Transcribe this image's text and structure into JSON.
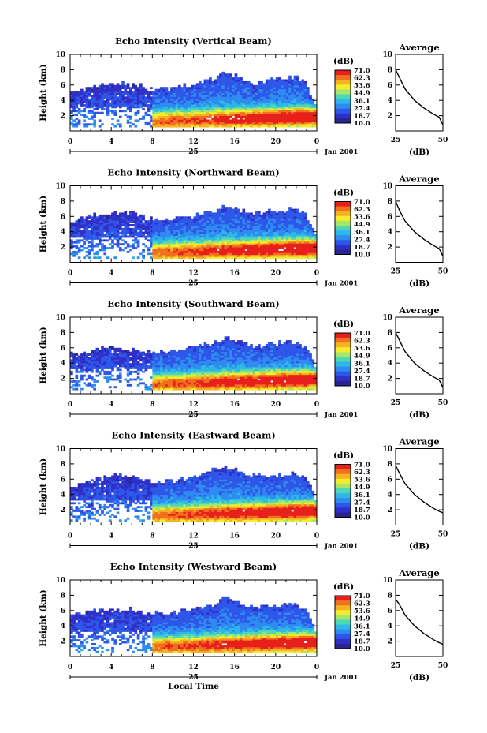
{
  "figure": {
    "x_axis_label": "Local Time",
    "y_axis_label": "Height (km)",
    "day_label": "25",
    "month_label": "Jan 2001",
    "colorbar_unit": "(dB)",
    "colorbar_ticks": [
      "71.0",
      "62.3",
      "53.6",
      "44.9",
      "36.1",
      "27.4",
      "18.7",
      "10.0"
    ],
    "colorbar_colors": [
      "#e8201c",
      "#f0701e",
      "#f5b324",
      "#f2ee2e",
      "#a8e66a",
      "#4fd7b4",
      "#2eb8e8",
      "#2e8cf0",
      "#2e56e8",
      "#3030c8",
      "#26268e"
    ],
    "avg_title": "Average",
    "avg_xlabel": "(dB)",
    "avg_xticks": [
      "25",
      "50"
    ],
    "height_ticks": [
      "2",
      "4",
      "6",
      "8",
      "10"
    ],
    "time_ticks": [
      "0",
      "4",
      "8",
      "12",
      "16",
      "20",
      "0"
    ]
  },
  "chart_data": [
    {
      "type": "heatmap",
      "title": "Echo Intensity (Vertical Beam)",
      "xlabel": "",
      "ylabel": "Height (km)",
      "xlim": [
        0,
        24
      ],
      "ylim": [
        0,
        10
      ],
      "clim": [
        10.0,
        71.0
      ],
      "top_height_by_hour": [
        [
          0,
          5.0
        ],
        [
          2,
          5.5
        ],
        [
          4,
          6.1
        ],
        [
          6,
          6.0
        ],
        [
          8,
          5.4
        ],
        [
          10,
          5.5
        ],
        [
          12,
          6.0
        ],
        [
          14,
          6.7
        ],
        [
          15,
          7.6
        ],
        [
          16,
          7.1
        ],
        [
          18,
          6.0
        ],
        [
          20,
          6.7
        ],
        [
          22,
          7.0
        ],
        [
          23,
          6.2
        ],
        [
          24,
          3.0
        ]
      ],
      "average_profile": {
        "title": "Average",
        "xlabel": "(dB)",
        "ylabel": "",
        "xlim": [
          25,
          50
        ],
        "ylim": [
          0,
          10
        ],
        "x": [
          25,
          27,
          30,
          35,
          40,
          45,
          48,
          50
        ],
        "y": [
          8.0,
          7.0,
          5.5,
          4.0,
          3.0,
          2.2,
          1.8,
          0.8
        ]
      }
    },
    {
      "type": "heatmap",
      "title": "Echo Intensity (Northward Beam)",
      "xlabel": "",
      "ylabel": "Height (km)",
      "xlim": [
        0,
        24
      ],
      "ylim": [
        0,
        10
      ],
      "clim": [
        10.0,
        71.0
      ],
      "top_height_by_hour": [
        [
          0,
          5.0
        ],
        [
          2,
          6.0
        ],
        [
          4,
          6.4
        ],
        [
          6,
          6.3
        ],
        [
          8,
          5.5
        ],
        [
          10,
          5.5
        ],
        [
          12,
          6.0
        ],
        [
          14,
          6.6
        ],
        [
          15,
          7.3
        ],
        [
          16,
          7.0
        ],
        [
          18,
          6.3
        ],
        [
          20,
          6.7
        ],
        [
          22,
          6.8
        ],
        [
          23,
          6.0
        ],
        [
          24,
          3.0
        ]
      ],
      "average_profile": {
        "title": "Average",
        "xlabel": "(dB)",
        "ylabel": "",
        "xlim": [
          25,
          50
        ],
        "ylim": [
          0,
          10
        ],
        "x": [
          25,
          27,
          30,
          35,
          40,
          45,
          48,
          50
        ],
        "y": [
          8.0,
          6.8,
          5.4,
          4.0,
          3.0,
          2.2,
          1.8,
          0.8
        ]
      }
    },
    {
      "type": "heatmap",
      "title": "Echo Intensity (Southward Beam)",
      "xlabel": "",
      "ylabel": "Height (km)",
      "xlim": [
        0,
        24
      ],
      "ylim": [
        0,
        10
      ],
      "clim": [
        10.0,
        71.0
      ],
      "top_height_by_hour": [
        [
          0,
          5.0
        ],
        [
          2,
          5.5
        ],
        [
          4,
          6.0
        ],
        [
          6,
          5.8
        ],
        [
          8,
          5.3
        ],
        [
          10,
          5.5
        ],
        [
          12,
          6.0
        ],
        [
          14,
          6.6
        ],
        [
          15,
          7.2
        ],
        [
          16,
          6.8
        ],
        [
          18,
          6.0
        ],
        [
          20,
          6.5
        ],
        [
          22,
          6.6
        ],
        [
          23,
          6.0
        ],
        [
          24,
          3.0
        ]
      ],
      "average_profile": {
        "title": "Average",
        "xlabel": "(dB)",
        "ylabel": "",
        "xlim": [
          25,
          50
        ],
        "ylim": [
          0,
          10
        ],
        "x": [
          25,
          27,
          30,
          35,
          40,
          45,
          48,
          50
        ],
        "y": [
          8.0,
          7.0,
          5.5,
          4.0,
          3.0,
          2.2,
          1.8,
          0.8
        ]
      }
    },
    {
      "type": "heatmap",
      "title": "Echo Intensity (Eastward Beam)",
      "xlabel": "",
      "ylabel": "Height (km)",
      "xlim": [
        0,
        24
      ],
      "ylim": [
        0,
        10
      ],
      "clim": [
        10.0,
        71.0
      ],
      "top_height_by_hour": [
        [
          0,
          5.0
        ],
        [
          2,
          5.8
        ],
        [
          4,
          6.4
        ],
        [
          6,
          6.2
        ],
        [
          8,
          5.5
        ],
        [
          10,
          5.6
        ],
        [
          12,
          6.0
        ],
        [
          14,
          7.2
        ],
        [
          15,
          7.5
        ],
        [
          16,
          7.2
        ],
        [
          18,
          6.2
        ],
        [
          20,
          6.4
        ],
        [
          22,
          6.7
        ],
        [
          23,
          6.0
        ],
        [
          24,
          3.0
        ]
      ],
      "average_profile": {
        "title": "Average",
        "xlabel": "(dB)",
        "ylabel": "",
        "xlim": [
          25,
          50
        ],
        "ylim": [
          0,
          10
        ],
        "x": [
          25,
          27,
          30,
          35,
          40,
          45,
          48,
          50
        ],
        "y": [
          7.8,
          6.8,
          5.4,
          4.0,
          3.0,
          2.2,
          1.8,
          1.6
        ]
      }
    },
    {
      "type": "heatmap",
      "title": "Echo Intensity (Westward Beam)",
      "xlabel": "Local Time",
      "ylabel": "Height (km)",
      "xlim": [
        0,
        24
      ],
      "ylim": [
        0,
        10
      ],
      "clim": [
        10.0,
        71.0
      ],
      "top_height_by_hour": [
        [
          0,
          5.2
        ],
        [
          2,
          5.8
        ],
        [
          4,
          6.3
        ],
        [
          6,
          6.0
        ],
        [
          8,
          5.5
        ],
        [
          10,
          5.6
        ],
        [
          12,
          6.0
        ],
        [
          14,
          6.6
        ],
        [
          15,
          7.5
        ],
        [
          16,
          7.2
        ],
        [
          18,
          6.4
        ],
        [
          20,
          6.5
        ],
        [
          22,
          6.8
        ],
        [
          23,
          6.0
        ],
        [
          24,
          3.0
        ]
      ],
      "average_profile": {
        "title": "Average",
        "xlabel": "(dB)",
        "ylabel": "",
        "xlim": [
          25,
          50
        ],
        "ylim": [
          0,
          10
        ],
        "x": [
          25,
          27,
          30,
          35,
          40,
          45,
          48,
          50
        ],
        "y": [
          7.5,
          6.8,
          5.4,
          4.0,
          3.0,
          2.2,
          1.8,
          1.6
        ]
      }
    }
  ]
}
